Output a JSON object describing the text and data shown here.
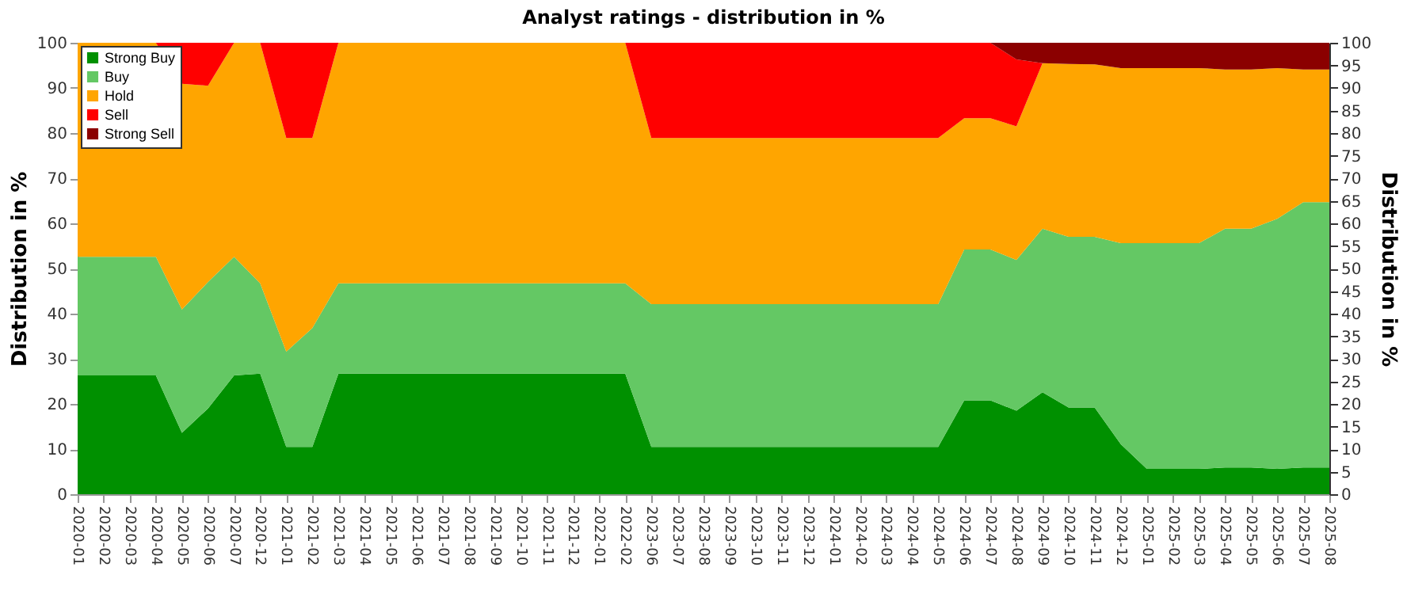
{
  "chart_data": {
    "type": "area",
    "stacked": true,
    "title": "Analyst ratings - distribution in %",
    "ylabel": "Distribution in %",
    "y2label": "Distribution in %",
    "categories": [
      "2020-01",
      "2020-02",
      "2020-03",
      "2020-04",
      "2020-05",
      "2020-06",
      "2020-07",
      "2020-12",
      "2021-01",
      "2021-02",
      "2021-03",
      "2021-04",
      "2021-05",
      "2021-06",
      "2021-07",
      "2021-08",
      "2021-09",
      "2021-10",
      "2021-11",
      "2021-12",
      "2022-01",
      "2022-02",
      "2023-06",
      "2023-07",
      "2023-08",
      "2023-09",
      "2023-10",
      "2023-11",
      "2023-12",
      "2024-01",
      "2024-02",
      "2024-03",
      "2024-04",
      "2024-05",
      "2024-06",
      "2024-07",
      "2024-08",
      "2024-09",
      "2024-10",
      "2024-11",
      "2024-12",
      "2025-01",
      "2025-02",
      "2025-03",
      "2025-04",
      "2025-05",
      "2025-06",
      "2025-07",
      "2025-08"
    ],
    "series": [
      {
        "name": "Strong Buy",
        "color": "#009000",
        "values": [
          26.3,
          26.3,
          26.3,
          26.3,
          13.6,
          19,
          26.3,
          26.7,
          10.5,
          10.5,
          26.7,
          26.7,
          26.7,
          26.7,
          26.7,
          26.7,
          26.7,
          26.7,
          26.7,
          26.7,
          26.7,
          26.7,
          10.5,
          10.5,
          10.5,
          10.5,
          10.5,
          10.5,
          10.5,
          10.5,
          10.5,
          10.5,
          10.5,
          10.5,
          20.8,
          20.8,
          18.5,
          22.6,
          19.2,
          19.2,
          11.1,
          5.6,
          5.6,
          5.6,
          5.9,
          5.9,
          5.6,
          5.9,
          5.9
        ]
      },
      {
        "name": "Buy",
        "color": "#64c864",
        "values": [
          26.3,
          26.3,
          26.3,
          26.3,
          27.3,
          28,
          26.3,
          20,
          21.1,
          26.3,
          20,
          20,
          20,
          20,
          20,
          20,
          20,
          20,
          20,
          20,
          20,
          20,
          31.6,
          31.6,
          31.6,
          31.6,
          31.6,
          31.6,
          31.6,
          31.6,
          31.6,
          31.6,
          31.6,
          31.6,
          33.4,
          33.4,
          33.4,
          36.2,
          37.8,
          37.8,
          44.5,
          50,
          50,
          50,
          52.9,
          52.9,
          55.4,
          58.8,
          58.8
        ]
      },
      {
        "name": "Hold",
        "color": "#ffa500",
        "values": [
          47.4,
          47.4,
          47.4,
          47.4,
          50,
          43.5,
          47.4,
          53.3,
          47.3,
          42.1,
          53.3,
          53.3,
          53.3,
          53.3,
          53.3,
          53.3,
          53.3,
          53.3,
          53.3,
          53.3,
          53.3,
          53.3,
          36.8,
          36.8,
          36.8,
          36.8,
          36.8,
          36.8,
          36.8,
          36.8,
          36.8,
          36.8,
          36.8,
          36.8,
          29.1,
          29.1,
          29.6,
          36.7,
          38.3,
          38.2,
          38.8,
          38.8,
          38.8,
          38.8,
          35.3,
          35.3,
          33.4,
          29.4,
          29.4
        ]
      },
      {
        "name": "Sell",
        "color": "#ff0000",
        "values": [
          0,
          0,
          0,
          0,
          9.1,
          9.5,
          0,
          0,
          21.1,
          21.1,
          0,
          0,
          0,
          0,
          0,
          0,
          0,
          0,
          0,
          0,
          0,
          0,
          21.1,
          21.1,
          21.1,
          21.1,
          21.1,
          21.1,
          21.1,
          21.1,
          21.1,
          21.1,
          21.1,
          21.1,
          16.7,
          16.7,
          14.8,
          0,
          0,
          0,
          0,
          0,
          0,
          0,
          0,
          0,
          0,
          0,
          0
        ]
      },
      {
        "name": "Strong Sell",
        "color": "#8b0000",
        "values": [
          0,
          0,
          0,
          0,
          0,
          0,
          0,
          0,
          0,
          0,
          0,
          0,
          0,
          0,
          0,
          0,
          0,
          0,
          0,
          0,
          0,
          0,
          0,
          0,
          0,
          0,
          0,
          0,
          0,
          0,
          0,
          0,
          0,
          0,
          0,
          0,
          3.7,
          4.5,
          4.7,
          4.8,
          5.6,
          5.6,
          5.6,
          5.6,
          5.9,
          5.9,
          5.6,
          5.9,
          5.9
        ]
      }
    ],
    "ylim": [
      0,
      100
    ],
    "yticks": [
      0,
      10,
      20,
      30,
      40,
      50,
      60,
      70,
      80,
      90,
      100
    ],
    "y2lim": [
      0,
      100
    ],
    "y2ticks": [
      0,
      5,
      10,
      15,
      20,
      25,
      30,
      35,
      40,
      45,
      50,
      55,
      60,
      65,
      70,
      75,
      80,
      85,
      90,
      95,
      100
    ],
    "grid": "y",
    "legend": "top left"
  }
}
